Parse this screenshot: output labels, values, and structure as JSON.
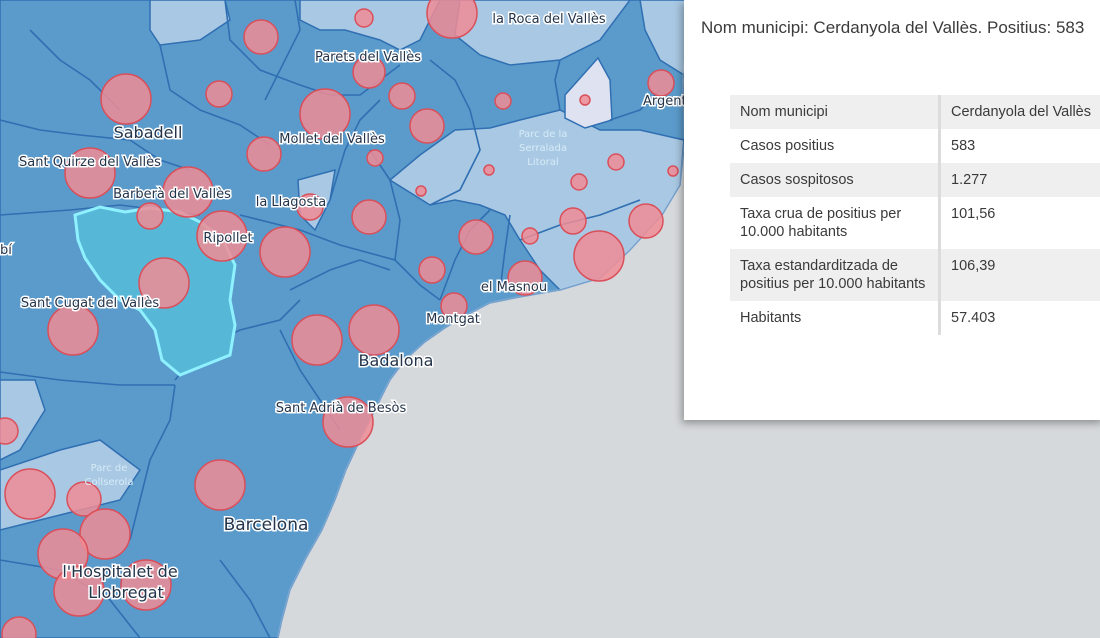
{
  "map": {
    "colors": {
      "sea": "#d6d9db",
      "base_region": "#5b9bcb",
      "light_region": "#a9c8e3",
      "pale_region": "#dfe3f1",
      "boundary": "#2f6fb2",
      "selected_fill": "#56b8d6",
      "selected_outline": "#8ff0ff",
      "circle_fill": "#f08c95",
      "circle_stroke": "#d94f5a"
    },
    "place_labels": [
      {
        "id": "la-roca",
        "text": "la Roca del Vallès",
        "size": "small"
      },
      {
        "id": "parets",
        "text": "Parets del Vallès",
        "size": "small"
      },
      {
        "id": "argentona",
        "text": "Argent",
        "size": "small"
      },
      {
        "id": "sabadell",
        "text": "Sabadell",
        "size": "large"
      },
      {
        "id": "mollet",
        "text": "Mollet del Vallès",
        "size": "small"
      },
      {
        "id": "sant-quirze",
        "text": "Sant Quirze del Vallès",
        "size": "small"
      },
      {
        "id": "barbera",
        "text": "Barberà del Vallès",
        "size": "small"
      },
      {
        "id": "la-llagosta",
        "text": "la Llagosta",
        "size": "small"
      },
      {
        "id": "ripollet",
        "text": "Ripollet",
        "size": "small"
      },
      {
        "id": "rubi",
        "text": "bí",
        "size": "small"
      },
      {
        "id": "el-masnou",
        "text": "el Masnou",
        "size": "small"
      },
      {
        "id": "sant-cugat",
        "text": "Sant Cugat del Vallès",
        "size": "small"
      },
      {
        "id": "montgat",
        "text": "Montgat",
        "size": "small"
      },
      {
        "id": "badalona",
        "text": "Badalona",
        "size": "large"
      },
      {
        "id": "sant-adria",
        "text": "Sant Adrià de Besòs",
        "size": "small"
      },
      {
        "id": "barcelona",
        "text": "Barcelona",
        "size": "large"
      },
      {
        "id": "hospitalet-1",
        "text": "l'Hospitalet de",
        "size": "large"
      },
      {
        "id": "hospitalet-2",
        "text": "Llobregat",
        "size": "large"
      }
    ],
    "park_labels": [
      {
        "id": "serralada-1",
        "text": "Parc de la"
      },
      {
        "id": "serralada-2",
        "text": "Serralada"
      },
      {
        "id": "serralada-3",
        "text": "Litoral"
      },
      {
        "id": "collserola-1",
        "text": "Parc de"
      },
      {
        "id": "collserola-2",
        "text": "Collserola"
      }
    ]
  },
  "popup": {
    "title": "Nom municipi: Cerdanyola del Vallès. Positius: 583",
    "rows": [
      {
        "label": "Nom municipi",
        "value": "Cerdanyola del Vallès"
      },
      {
        "label": "Casos positius",
        "value": "583"
      },
      {
        "label": "Casos sospitosos",
        "value": "1.277"
      },
      {
        "label": "Taxa crua de positius per 10.000 habitants",
        "value": "101,56"
      },
      {
        "label": "Taxa estandarditzada de positius per 10.000 habitants",
        "value": "106,39"
      },
      {
        "label": "Habitants",
        "value": "57.403"
      }
    ]
  }
}
